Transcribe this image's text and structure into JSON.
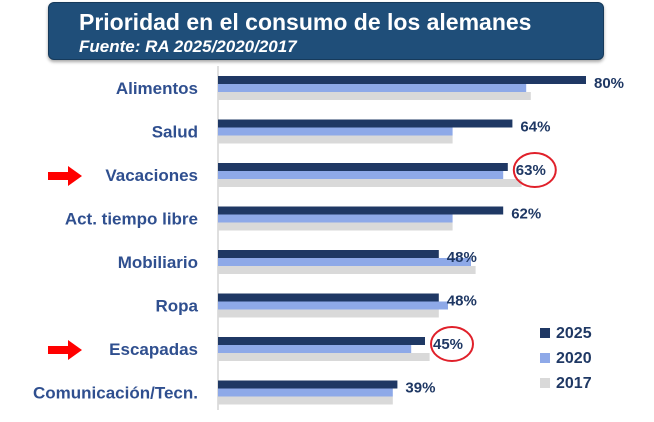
{
  "chart_data": {
    "type": "bar",
    "orientation": "horizontal",
    "title": "Prioridad en el consumo de los alemanes",
    "subtitle": "Fuente: RA 2025/2020/2017",
    "categories": [
      "Alimentos",
      "Salud",
      "Vacaciones",
      "Act. tiempo libre",
      "Mobiliario",
      "Ropa",
      "Escapadas",
      "Comunicación/Tecn."
    ],
    "series": [
      {
        "name": "2025",
        "color": "#1f3864",
        "values": [
          80,
          64,
          63,
          62,
          48,
          48,
          45,
          39
        ]
      },
      {
        "name": "2020",
        "color": "#8ea9e8",
        "values": [
          67,
          51,
          62,
          51,
          55,
          50,
          42,
          38
        ]
      },
      {
        "name": "2017",
        "color": "#d9d9d9",
        "values": [
          68,
          51,
          66,
          51,
          56,
          48,
          46,
          38
        ]
      }
    ],
    "value_labels": [
      "80%",
      "64%",
      "63%",
      "62%",
      "48%",
      "48%",
      "45%",
      "39%"
    ],
    "highlighted": [
      "Vacaciones",
      "Escapadas"
    ],
    "xlim": [
      0,
      100
    ],
    "grid": false,
    "legend": "bottom-right"
  },
  "colors": {
    "label_color": "#2f4f8f",
    "highlight_arrow": "#ff0000",
    "highlight_circle": "#e0202a"
  }
}
